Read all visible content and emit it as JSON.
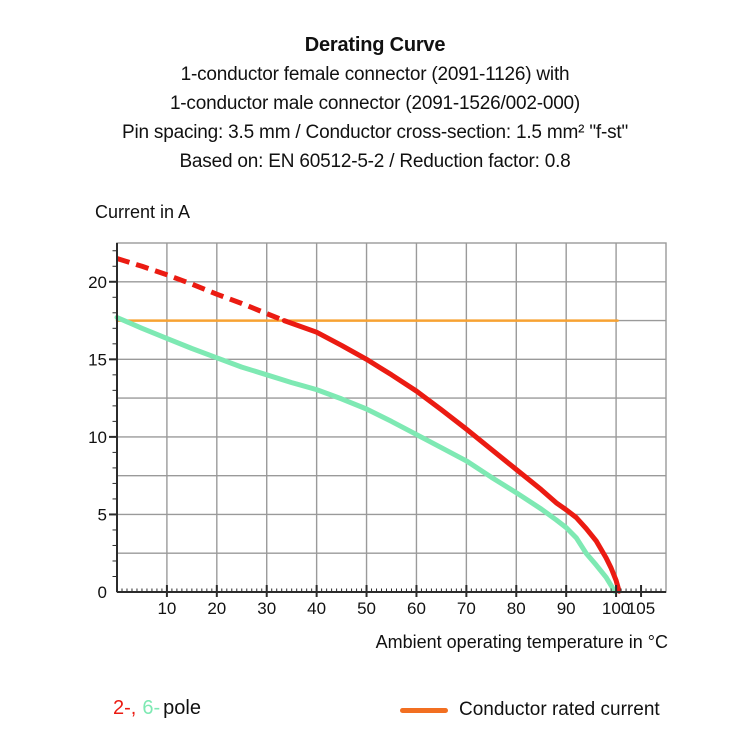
{
  "header": {
    "title": "Derating Curve",
    "subtitle_lines": [
      "1-conductor female connector (2091-1126) with",
      "1-conductor male connector (2091-1526/002-000)",
      "Pin spacing: 3.5 mm / Conductor cross-section: 1.5 mm² \"f-st\"",
      "Based on: EN 60512-5-2 / Reduction factor: 0.8"
    ]
  },
  "chart_data": {
    "type": "line",
    "title": "Derating Curve",
    "ylabel": "Current in A",
    "xlabel": "Ambient operating temperature in °C",
    "xlim": [
      0,
      110
    ],
    "ylim": [
      0,
      22.5
    ],
    "x_major_ticks": [
      10,
      20,
      30,
      40,
      50,
      60,
      70,
      80,
      90,
      100,
      105
    ],
    "x_minor_tick_step": 1,
    "x_grid_step": 10,
    "y_major_ticks": [
      0,
      5,
      10,
      15,
      20
    ],
    "y_minor_tick_step": 1,
    "y_grid_step": 2.5,
    "grid": true,
    "legend_position": "bottom",
    "colors": {
      "pole2": "#eb1b12",
      "pole6": "#7ee9b3",
      "rated_line": "#f7a233",
      "legend_swatch": "#f26f21",
      "grid": "#9a9a9a",
      "axis": "#2b2b2b",
      "text": "#111111"
    },
    "series": [
      {
        "id": "rated",
        "name": "Conductor rated current",
        "color_key": "rated_line",
        "dash": false,
        "width": 2.5,
        "points": [
          [
            0,
            17.5
          ],
          [
            100.3,
            17.5
          ]
        ]
      },
      {
        "id": "pole6",
        "name": "6-pole",
        "color_key": "pole6",
        "dash": false,
        "width": 5,
        "points": [
          [
            0,
            17.7
          ],
          [
            5,
            17.0
          ],
          [
            10,
            16.35
          ],
          [
            15,
            15.7
          ],
          [
            20,
            15.1
          ],
          [
            25,
            14.5
          ],
          [
            30,
            14.0
          ],
          [
            35,
            13.5
          ],
          [
            40,
            13.05
          ],
          [
            45,
            12.45
          ],
          [
            50,
            11.8
          ],
          [
            55,
            11.0
          ],
          [
            60,
            10.15
          ],
          [
            65,
            9.3
          ],
          [
            70,
            8.45
          ],
          [
            75,
            7.4
          ],
          [
            80,
            6.4
          ],
          [
            85,
            5.35
          ],
          [
            88,
            4.65
          ],
          [
            90,
            4.15
          ],
          [
            92,
            3.5
          ],
          [
            94,
            2.5
          ],
          [
            96,
            1.75
          ],
          [
            98,
            0.95
          ],
          [
            99.7,
            0.05
          ]
        ]
      },
      {
        "id": "pole2_dashed",
        "name": "2-pole (above conductor rated current, dashed)",
        "color_key": "pole2",
        "dash": true,
        "width": 5,
        "points": [
          [
            0,
            21.5
          ],
          [
            5,
            21.0
          ],
          [
            10,
            20.45
          ],
          [
            15,
            19.85
          ],
          [
            20,
            19.2
          ],
          [
            25,
            18.6
          ],
          [
            30,
            17.95
          ],
          [
            33.5,
            17.5
          ]
        ]
      },
      {
        "id": "pole2",
        "name": "2-pole",
        "color_key": "pole2",
        "dash": false,
        "width": 5,
        "points": [
          [
            33.5,
            17.5
          ],
          [
            40,
            16.75
          ],
          [
            45,
            15.9
          ],
          [
            50,
            15.0
          ],
          [
            55,
            14.0
          ],
          [
            60,
            12.95
          ],
          [
            65,
            11.75
          ],
          [
            70,
            10.5
          ],
          [
            75,
            9.2
          ],
          [
            80,
            7.9
          ],
          [
            85,
            6.6
          ],
          [
            88,
            5.75
          ],
          [
            90,
            5.3
          ],
          [
            92,
            4.8
          ],
          [
            94,
            4.1
          ],
          [
            96,
            3.3
          ],
          [
            98,
            2.2
          ],
          [
            99,
            1.55
          ],
          [
            100,
            0.75
          ],
          [
            100.6,
            0.05
          ]
        ]
      }
    ]
  },
  "legend": {
    "pole2_label": "2-,",
    "pole6_label": "6-",
    "pole_suffix": "pole",
    "rated_label": "Conductor rated current"
  }
}
